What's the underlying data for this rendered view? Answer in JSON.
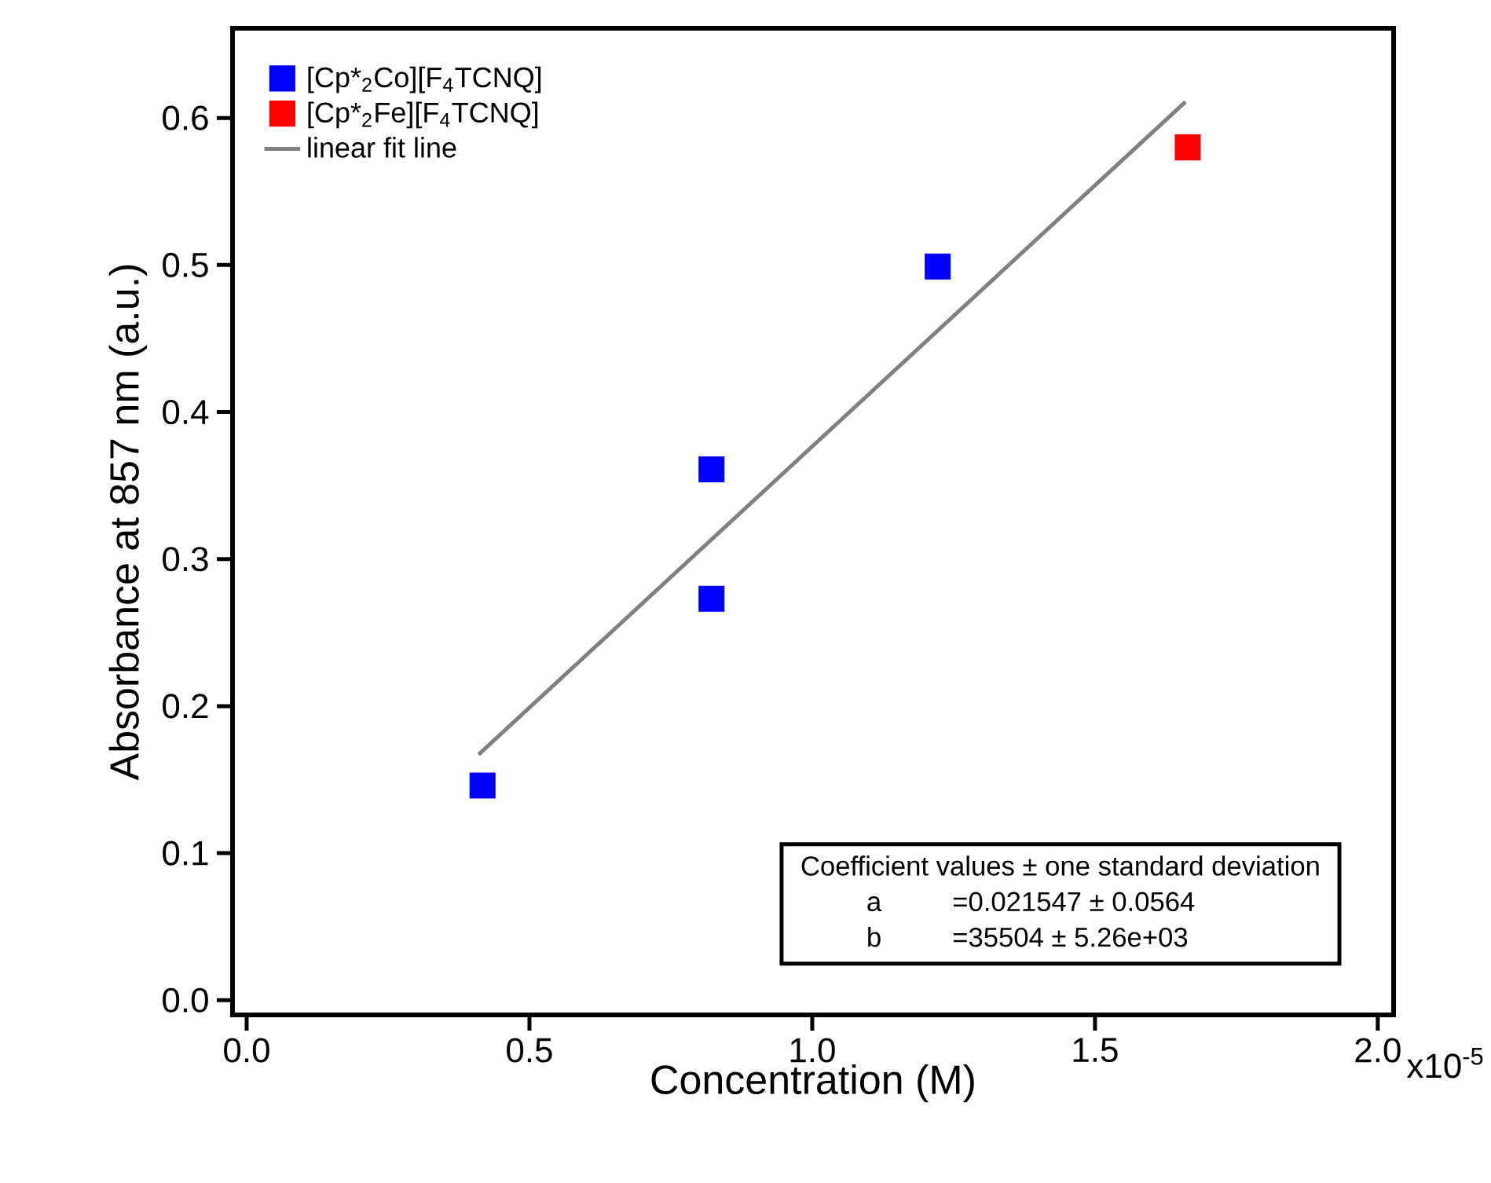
{
  "chart_data": {
    "type": "scatter",
    "xlabel": "Concentration (M)",
    "ylabel": "Absorbance at 857 nm (a.u.)",
    "xlim": [
      -0.025,
      2.028
    ],
    "ylim": [
      -0.01,
      0.661
    ],
    "xticks": [
      {
        "value": 0,
        "label": "0.0"
      },
      {
        "value": 0.5,
        "label": "0.5"
      },
      {
        "value": 1,
        "label": "1.0"
      },
      {
        "value": 1.5,
        "label": "1.5"
      },
      {
        "value": 2,
        "label": "2.0"
      }
    ],
    "yticks": [
      {
        "value": 0,
        "label": "0.0"
      },
      {
        "value": 0.1,
        "label": "0.1"
      },
      {
        "value": 0.2,
        "label": "0.2"
      },
      {
        "value": 0.3,
        "label": "0.3"
      },
      {
        "value": 0.4,
        "label": "0.4"
      },
      {
        "value": 0.5,
        "label": "0.5"
      },
      {
        "value": 0.6,
        "label": "0.6"
      }
    ],
    "marker": "square",
    "legend": "top left",
    "series": [
      {
        "name": "[Cp*$_{2}$Co][F$_{4}$TCNQ]",
        "color": "#0000ff",
        "x": [
          0.417,
          0.822,
          0.822,
          1.222
        ],
        "values": [
          0.146,
          0.361,
          0.273,
          0.499
        ]
      },
      {
        "name": "[Cp*$_{2}$Fe][F$_{4}$TCNQ]",
        "color": "#ff0000",
        "x": [
          1.664
        ],
        "values": [
          0.58
        ]
      },
      {
        "name": "linear fit line",
        "type": "line",
        "marker": "none",
        "color": "#808080",
        "x": [
          0.41,
          1.66
        ],
        "values": [
          0.167,
          0.611
        ]
      }
    ],
    "annotations": [
      "Coefficient values ± one standard deviation",
      "a",
      "=0.021547 ± 0.0564",
      "b",
      "=35504 ± 5.26e+03",
      "x10$^{-5}$"
    ]
  }
}
